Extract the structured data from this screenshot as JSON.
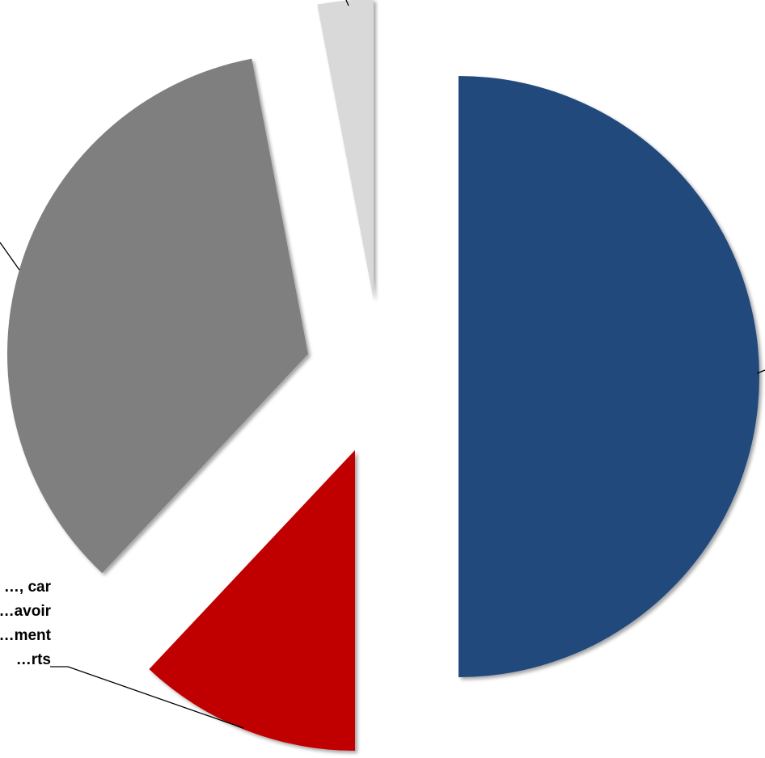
{
  "chart_data": {
    "type": "pie",
    "exploded": true,
    "slices": [
      {
        "value": 50.0,
        "color": "#214a7b",
        "label": ""
      },
      {
        "value": 12.0,
        "color": "#c00000",
        "label": "…, car\n…avoir\n…ment\n…rts"
      },
      {
        "value": 35.0,
        "color": "#7f7f7f",
        "label": ""
      },
      {
        "value": 3.0,
        "color": "#d9d9d9",
        "label": ""
      }
    ],
    "leader_line_color": "#000000"
  }
}
